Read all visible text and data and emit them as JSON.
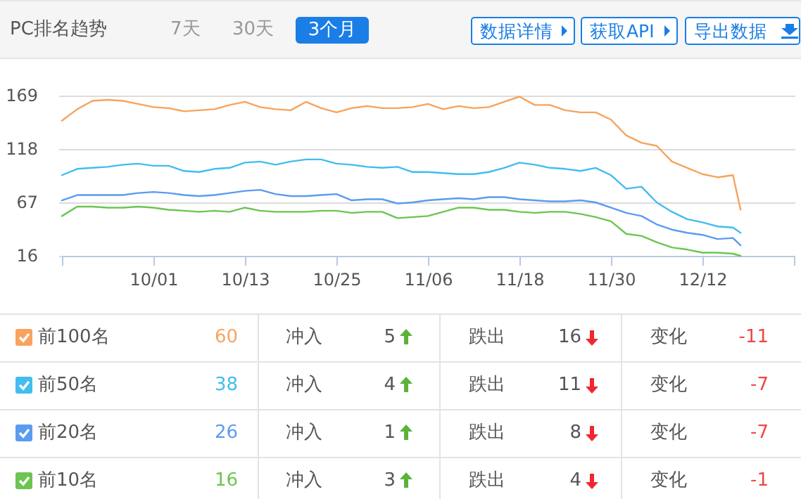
{
  "chart_data": {
    "type": "line",
    "title": "PC排名趋势",
    "x": [
      "--09-19",
      "--09-21",
      "--09-23",
      "--09-25",
      "--09-27",
      "--09-29",
      "--10-01",
      "--10-03",
      "--10-05",
      "--10-07",
      "--10-09",
      "--10-11",
      "--10-13",
      "--10-15",
      "--10-17",
      "--10-19",
      "--10-21",
      "--10-23",
      "--10-25",
      "--10-27",
      "--10-29",
      "--10-31",
      "--11-02",
      "--11-04",
      "--11-06",
      "--11-08",
      "--11-10",
      "--11-12",
      "--11-14",
      "--11-16",
      "--11-18",
      "--11-20",
      "--11-22",
      "--11-24",
      "--11-26",
      "--11-28",
      "--11-30",
      "--12-02",
      "--12-04",
      "--12-06",
      "--12-08",
      "--12-10",
      "--12-12",
      "--12-14",
      "--12-16",
      "--12-17"
    ],
    "series": [
      {
        "name": "前100名",
        "color": "#f7a35c",
        "values": [
          145,
          156,
          164,
          165,
          164,
          161,
          158,
          157,
          154,
          155,
          156,
          160,
          163,
          158,
          156,
          155,
          163,
          157,
          153,
          157,
          159,
          157,
          157,
          158,
          161,
          156,
          159,
          157,
          158,
          163,
          168,
          160,
          160,
          155,
          153,
          153,
          146,
          131,
          124,
          121,
          106,
          100,
          94,
          91,
          93,
          60
        ]
      },
      {
        "name": "前50名",
        "color": "#41bdf0",
        "values": [
          93,
          99,
          100,
          101,
          103,
          104,
          102,
          102,
          97,
          96,
          99,
          100,
          105,
          106,
          103,
          106,
          108,
          108,
          104,
          103,
          101,
          100,
          101,
          96,
          96,
          95,
          94,
          94,
          96,
          100,
          105,
          103,
          100,
          99,
          97,
          100,
          93,
          80,
          82,
          67,
          58,
          51,
          48,
          44,
          43,
          38
        ]
      },
      {
        "name": "前20名",
        "color": "#5b9bf0",
        "values": [
          69,
          74,
          74,
          74,
          74,
          76,
          77,
          76,
          74,
          73,
          74,
          76,
          78,
          79,
          75,
          73,
          73,
          74,
          75,
          69,
          70,
          70,
          66,
          67,
          69,
          70,
          71,
          70,
          72,
          72,
          70,
          69,
          68,
          68,
          69,
          67,
          62,
          57,
          54,
          46,
          41,
          38,
          36,
          32,
          33,
          26
        ]
      },
      {
        "name": "前10名",
        "color": "#6cc551",
        "values": [
          54,
          63,
          63,
          62,
          62,
          63,
          62,
          60,
          59,
          58,
          59,
          58,
          62,
          59,
          58,
          58,
          58,
          59,
          59,
          57,
          58,
          58,
          52,
          53,
          54,
          58,
          62,
          62,
          60,
          60,
          58,
          57,
          58,
          58,
          56,
          53,
          49,
          37,
          35,
          29,
          24,
          22,
          19,
          19,
          18,
          16
        ]
      }
    ],
    "xlim": [
      "--09-19",
      "--12-24"
    ],
    "xticks": [
      {
        "value": "--09-19",
        "label": null
      },
      {
        "value": "--10-01",
        "label": "10/01"
      },
      {
        "value": "--10-13",
        "label": "10/13"
      },
      {
        "value": "--10-25",
        "label": "10/25"
      },
      {
        "value": "--11-06",
        "label": "11/06"
      },
      {
        "value": "--11-18",
        "label": "11/18"
      },
      {
        "value": "--11-30",
        "label": "11/30"
      },
      {
        "value": "--12-12",
        "label": "12/12"
      },
      {
        "value": "--12-24",
        "label": null
      }
    ],
    "ylim": [
      16,
      169
    ],
    "yticks": [
      16,
      67,
      118,
      169
    ],
    "grid": "y",
    "marker": "none",
    "line_style": "solid",
    "legend": "bottom",
    "annotations": [
      "7天",
      "30天",
      "3个月",
      "数据详情",
      "获取API",
      "导出数据",
      "60",
      "冲入",
      "5",
      "跌出",
      "16",
      "变化",
      "-11",
      "38",
      "冲入",
      "4",
      "跌出",
      "11",
      "变化",
      "-7",
      "26",
      "冲入",
      "1",
      "跌出",
      "8",
      "变化",
      "-7",
      "16",
      "冲入",
      "3",
      "跌出",
      "4",
      "变化",
      "-1"
    ]
  }
}
